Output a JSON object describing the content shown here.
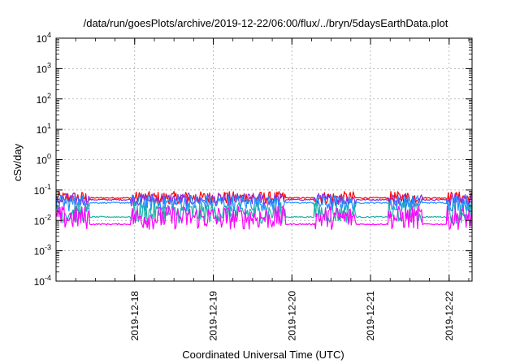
{
  "chart_data": {
    "type": "line",
    "title": "/data/run/goesPlots/archive/2019-12-22/06:00/flux/../bryn/5daysEarthData.plot",
    "xlabel": "Coordinated Universal Time (UTC)",
    "ylabel": "cSv/day",
    "yscale": "log",
    "ylim": [
      0.0001,
      10000
    ],
    "xlim": [
      "2019-12-17T00:00",
      "2019-12-22T07:00"
    ],
    "grid": true,
    "x_ticks": [
      "2019-12-18",
      "2019-12-19",
      "2019-12-20",
      "2019-12-21",
      "2019-12-22"
    ],
    "y_ticks": [
      {
        "base": "10",
        "exp": "4"
      },
      {
        "base": "10",
        "exp": "3"
      },
      {
        "base": "10",
        "exp": "2"
      },
      {
        "base": "10",
        "exp": "1"
      },
      {
        "base": "10",
        "exp": "0"
      },
      {
        "base": "10",
        "exp": "-1"
      },
      {
        "base": "10",
        "exp": "-2"
      },
      {
        "base": "10",
        "exp": "-3"
      },
      {
        "base": "10",
        "exp": "-4"
      }
    ],
    "series": [
      {
        "color": "#ff0000",
        "values_range": [
          0.035,
          0.09
        ],
        "baseline": 0.055
      },
      {
        "color": "#8a2be2",
        "values_range": [
          0.03,
          0.08
        ],
        "baseline": 0.048
      },
      {
        "color": "#1e90ff",
        "values_range": [
          0.02,
          0.07
        ],
        "baseline": 0.038
      },
      {
        "color": "#20b2aa",
        "values_range": [
          0.008,
          0.04
        ],
        "baseline": 0.013
      },
      {
        "color": "#ff00ff",
        "values_range": [
          0.005,
          0.03
        ],
        "baseline": 0.0075
      }
    ]
  }
}
